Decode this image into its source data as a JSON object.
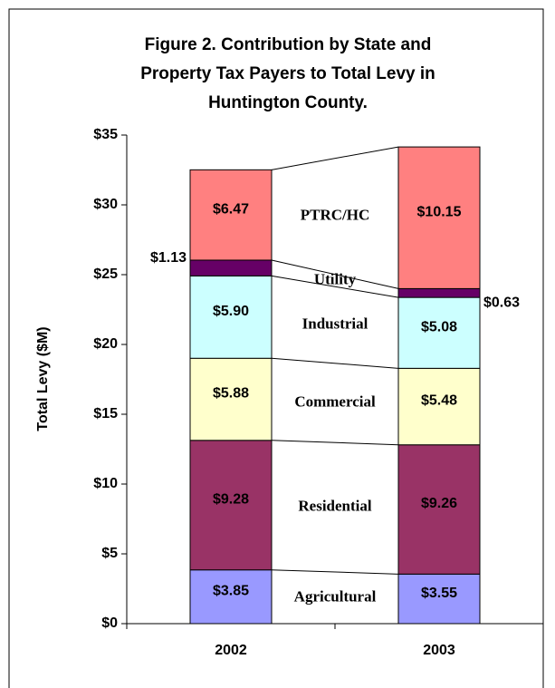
{
  "chart_data": {
    "type": "stacked_bar",
    "title": [
      "Figure 2. Contribution by State and",
      "Property Tax Payers to Total Levy in",
      "Huntington County."
    ],
    "y_label": "Total Levy ($M)",
    "categories": [
      "2002",
      "2003"
    ],
    "series": [
      {
        "name": "Agricultural",
        "color": "#9999ff",
        "values": [
          3.85,
          3.55
        ],
        "value_labels": [
          "$3.85",
          "$3.55"
        ]
      },
      {
        "name": "Residential",
        "color": "#993366",
        "values": [
          9.28,
          9.26
        ],
        "value_labels": [
          "$9.28",
          "$9.26"
        ]
      },
      {
        "name": "Commercial",
        "color": "#ffffcc",
        "values": [
          5.88,
          5.48
        ],
        "value_labels": [
          "$5.88",
          "$5.48"
        ]
      },
      {
        "name": "Industrial",
        "color": "#ccffff",
        "values": [
          5.9,
          5.08
        ],
        "value_labels": [
          "$5.90",
          "$5.08"
        ]
      },
      {
        "name": "Utility",
        "color": "#660066",
        "values": [
          1.13,
          0.63
        ],
        "value_labels": [
          "$1.13",
          "$0.63"
        ]
      },
      {
        "name": "PTRC/HC",
        "color": "#ff8080",
        "values": [
          6.47,
          10.15
        ],
        "value_labels": [
          "$6.47",
          "$10.15"
        ]
      }
    ],
    "ylim": [
      0,
      35
    ],
    "yticks": [
      {
        "value": 0,
        "label": "$0"
      },
      {
        "value": 5,
        "label": "$5"
      },
      {
        "value": 10,
        "label": "$10"
      },
      {
        "value": 15,
        "label": "$15"
      },
      {
        "value": 20,
        "label": "$20"
      },
      {
        "value": 25,
        "label": "$25"
      },
      {
        "value": 30,
        "label": "$30"
      },
      {
        "value": 35,
        "label": "$35"
      }
    ]
  }
}
